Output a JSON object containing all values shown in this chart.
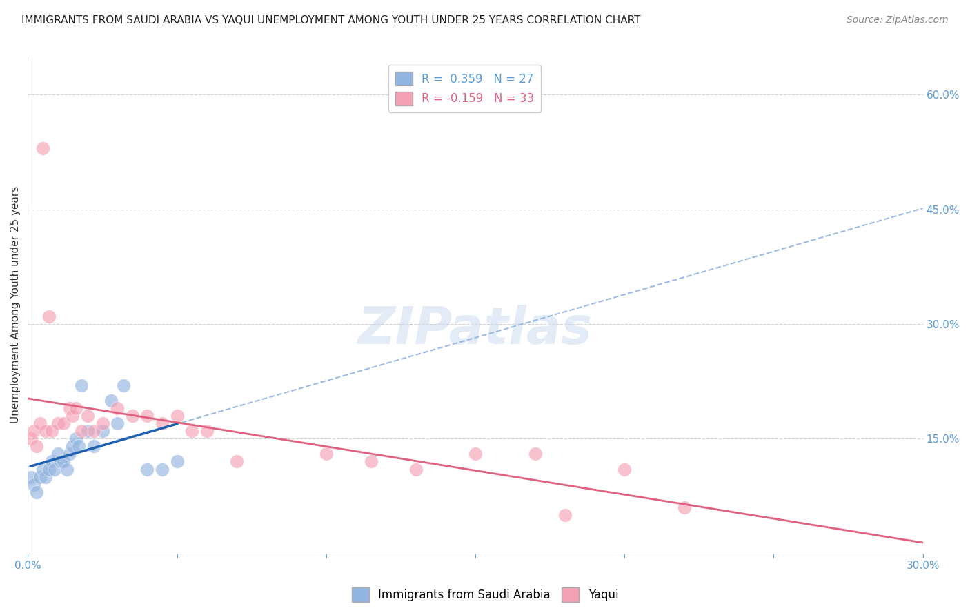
{
  "title": "IMMIGRANTS FROM SAUDI ARABIA VS YAQUI UNEMPLOYMENT AMONG YOUTH UNDER 25 YEARS CORRELATION CHART",
  "source": "Source: ZipAtlas.com",
  "ylabel": "Unemployment Among Youth under 25 years",
  "xlim": [
    0.0,
    0.3
  ],
  "ylim": [
    0.0,
    0.65
  ],
  "xticks": [
    0.0,
    0.05,
    0.1,
    0.15,
    0.2,
    0.25,
    0.3
  ],
  "xticklabels": [
    "0.0%",
    "",
    "",
    "",
    "",
    "",
    "30.0%"
  ],
  "yticks": [
    0.0,
    0.15,
    0.3,
    0.45,
    0.6
  ],
  "yticklabels": [
    "",
    "15.0%",
    "30.0%",
    "45.0%",
    "60.0%"
  ],
  "blue_R": 0.359,
  "blue_N": 27,
  "pink_R": -0.159,
  "pink_N": 33,
  "blue_color": "#92b4e0",
  "pink_color": "#f4a0b5",
  "blue_line_color": "#2060b0",
  "pink_line_color": "#e06080",
  "dashed_line_color": "#92b4e0",
  "blue_x": [
    0.001,
    0.002,
    0.003,
    0.004,
    0.005,
    0.006,
    0.007,
    0.008,
    0.009,
    0.01,
    0.011,
    0.012,
    0.013,
    0.014,
    0.015,
    0.016,
    0.017,
    0.018,
    0.02,
    0.022,
    0.025,
    0.028,
    0.03,
    0.032,
    0.04,
    0.045,
    0.05
  ],
  "blue_y": [
    0.1,
    0.09,
    0.08,
    0.1,
    0.11,
    0.1,
    0.11,
    0.12,
    0.11,
    0.13,
    0.12,
    0.12,
    0.11,
    0.13,
    0.14,
    0.15,
    0.14,
    0.22,
    0.16,
    0.14,
    0.16,
    0.2,
    0.17,
    0.22,
    0.11,
    0.11,
    0.12
  ],
  "pink_x": [
    0.001,
    0.002,
    0.003,
    0.004,
    0.005,
    0.006,
    0.007,
    0.008,
    0.01,
    0.012,
    0.014,
    0.015,
    0.016,
    0.018,
    0.02,
    0.022,
    0.025,
    0.03,
    0.035,
    0.04,
    0.045,
    0.05,
    0.055,
    0.06,
    0.07,
    0.1,
    0.115,
    0.13,
    0.15,
    0.17,
    0.18,
    0.2,
    0.22
  ],
  "pink_y": [
    0.15,
    0.16,
    0.14,
    0.17,
    0.53,
    0.16,
    0.31,
    0.16,
    0.17,
    0.17,
    0.19,
    0.18,
    0.19,
    0.16,
    0.18,
    0.16,
    0.17,
    0.19,
    0.18,
    0.18,
    0.17,
    0.18,
    0.16,
    0.16,
    0.12,
    0.13,
    0.12,
    0.11,
    0.13,
    0.13,
    0.05,
    0.11,
    0.06
  ],
  "title_fontsize": 11,
  "source_fontsize": 10,
  "axis_label_fontsize": 11,
  "tick_fontsize": 11,
  "legend_fontsize": 12,
  "watermark": "ZIPatlas"
}
